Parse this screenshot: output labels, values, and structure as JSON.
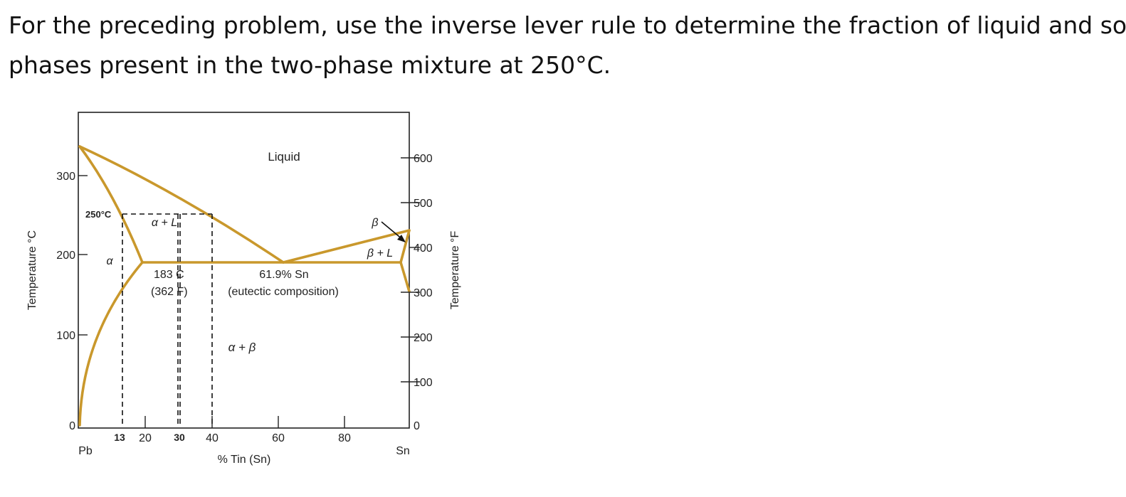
{
  "question": {
    "line1": "For the preceding problem, use the inverse lever rule to determine the fraction of liquid and solid",
    "line2": "phases present in the two-phase mixture at 250°C."
  },
  "colors": {
    "phase_line": "#c9982c",
    "frame": "#222222",
    "guide": "#111111"
  },
  "diagram": {
    "left_axis": {
      "label": "Temperature °C",
      "ticks": [
        {
          "value": 0,
          "label": "0"
        },
        {
          "value": 100,
          "label": "100"
        },
        {
          "value": 200,
          "label": "200"
        },
        {
          "value": 300,
          "label": "300"
        }
      ]
    },
    "right_axis": {
      "label": "Temperature °F",
      "ticks": [
        {
          "value": 0,
          "label": "0"
        },
        {
          "value": 100,
          "label": "100"
        },
        {
          "value": 200,
          "label": "200"
        },
        {
          "value": 300,
          "label": "300"
        },
        {
          "value": 400,
          "label": "400"
        },
        {
          "value": 500,
          "label": "500"
        },
        {
          "value": 600,
          "label": "600"
        }
      ]
    },
    "bottom_axis": {
      "label": "% Tin (Sn)",
      "left_end": "Pb",
      "right_end": "Sn",
      "ticks": [
        {
          "value": 20,
          "label": "20"
        },
        {
          "value": 40,
          "label": "40"
        },
        {
          "value": 60,
          "label": "60"
        },
        {
          "value": 80,
          "label": "80"
        }
      ],
      "marked": [
        {
          "value": 13,
          "label": "13"
        },
        {
          "value": 30,
          "label": "30"
        }
      ]
    },
    "labels": {
      "liquid": "Liquid",
      "alpha_liquid": "α + L",
      "alpha": "α",
      "beta": "β",
      "beta_liquid": "β + L",
      "alpha_beta": "α + β",
      "eutectic_temp_c": "183 C",
      "eutectic_temp_f": "(362 F)",
      "eutectic_comp": "61.9% Sn",
      "eutectic_note": "(eutectic composition)",
      "temp_250": "250°C"
    },
    "guide_temperature_c": 250,
    "guide_compositions": [
      13,
      30,
      40
    ]
  }
}
